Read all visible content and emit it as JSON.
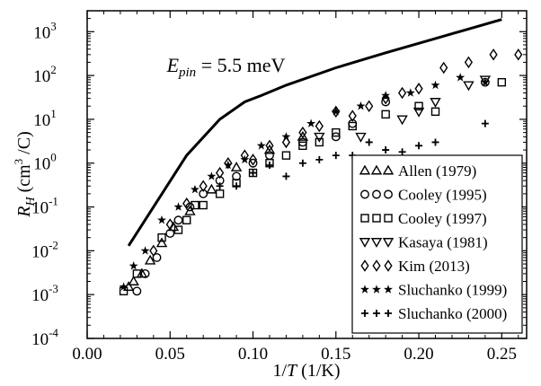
{
  "chart_data": {
    "type": "scatter",
    "xlabel": "1/T (1/K)",
    "ylabel": "R_H (cm^3 /C)",
    "xlim": [
      0.0,
      0.265
    ],
    "ylim": [
      0.0001,
      3000
    ],
    "yscale": "log",
    "grid": false,
    "legend_position": "lower-right",
    "x_ticks": [
      0.0,
      0.05,
      0.1,
      0.15,
      0.2,
      0.25
    ],
    "x_tick_labels": [
      "0.00",
      "0.05",
      "0.10",
      "0.15",
      "0.20",
      "0.25"
    ],
    "y_ticks": [
      0.0001,
      0.001,
      0.01,
      0.1,
      1.0,
      10.0,
      100.0,
      1000.0
    ],
    "y_tick_labels": [
      {
        "base": "10",
        "exp": "-4"
      },
      {
        "base": "10",
        "exp": "-3"
      },
      {
        "base": "10",
        "exp": "-2"
      },
      {
        "base": "10",
        "exp": "-1"
      },
      {
        "base": "10",
        "exp": "0"
      },
      {
        "base": "10",
        "exp": "1"
      },
      {
        "base": "10",
        "exp": "2"
      },
      {
        "base": "10",
        "exp": "3"
      }
    ],
    "annotation": {
      "symbol": "E",
      "subscript": "pin",
      "text": " = 5.5 meV",
      "x": 0.048,
      "y": 120
    },
    "curve": {
      "x": [
        0.025,
        0.04,
        0.06,
        0.08,
        0.095,
        0.105,
        0.12,
        0.15,
        0.18,
        0.21,
        0.25
      ],
      "y": [
        0.013,
        0.1,
        1.5,
        10,
        25,
        35,
        60,
        150,
        330,
        700,
        1900
      ]
    },
    "series": [
      {
        "name": "Allen (1979)",
        "marker": "triangle-up",
        "x": [
          0.025,
          0.028,
          0.033,
          0.038,
          0.045,
          0.052,
          0.062,
          0.075,
          0.09,
          0.11,
          0.13
        ],
        "y": [
          0.0015,
          0.002,
          0.003,
          0.006,
          0.015,
          0.035,
          0.08,
          0.25,
          0.8,
          2.0,
          4.0
        ]
      },
      {
        "name": "Cooley (1995)",
        "marker": "circle",
        "x": [
          0.03,
          0.035,
          0.042,
          0.05,
          0.055,
          0.062,
          0.07,
          0.08,
          0.09,
          0.1,
          0.11,
          0.13,
          0.15,
          0.16,
          0.18,
          0.24
        ],
        "y": [
          0.0012,
          0.003,
          0.007,
          0.025,
          0.05,
          0.1,
          0.2,
          0.4,
          0.5,
          1.0,
          1.5,
          3.0,
          4.0,
          8.0,
          25,
          70
        ]
      },
      {
        "name": "Cooley (1997)",
        "marker": "square",
        "x": [
          0.022,
          0.03,
          0.045,
          0.055,
          0.06,
          0.065,
          0.07,
          0.08,
          0.09,
          0.1,
          0.11,
          0.12,
          0.13,
          0.14,
          0.15,
          0.16,
          0.18,
          0.2,
          0.21,
          0.25
        ],
        "y": [
          0.0012,
          0.003,
          0.02,
          0.03,
          0.05,
          0.11,
          0.11,
          0.2,
          0.35,
          0.6,
          1.0,
          1.5,
          2.5,
          3.0,
          5.0,
          7.0,
          13,
          20,
          15,
          70
        ]
      },
      {
        "name": "Kasaya (1981)",
        "marker": "triangle-down",
        "x": [
          0.14,
          0.165,
          0.19,
          0.2,
          0.21,
          0.23,
          0.24
        ],
        "y": [
          4.0,
          4.0,
          10,
          15,
          25,
          60,
          80
        ]
      },
      {
        "name": "Kim (2013)",
        "marker": "diamond",
        "x": [
          0.04,
          0.05,
          0.06,
          0.07,
          0.08,
          0.085,
          0.095,
          0.1,
          0.11,
          0.12,
          0.13,
          0.14,
          0.15,
          0.16,
          0.17,
          0.18,
          0.19,
          0.2,
          0.215,
          0.23,
          0.245,
          0.26
        ],
        "y": [
          0.01,
          0.04,
          0.12,
          0.3,
          0.6,
          1.0,
          1.5,
          1.2,
          2.5,
          3.0,
          5.0,
          7.0,
          15,
          12,
          20,
          30,
          40,
          50,
          150,
          200,
          300,
          300
        ]
      },
      {
        "name": "Sluchanko (1999)",
        "marker": "star",
        "x": [
          0.022,
          0.028,
          0.035,
          0.045,
          0.055,
          0.065,
          0.075,
          0.085,
          0.095,
          0.105,
          0.12,
          0.135,
          0.15,
          0.165,
          0.18,
          0.195,
          0.21,
          0.225,
          0.24
        ],
        "y": [
          0.0015,
          0.0045,
          0.01,
          0.05,
          0.1,
          0.25,
          0.5,
          0.9,
          1.2,
          2.5,
          4.0,
          8.0,
          15,
          20,
          35,
          40,
          60,
          90,
          70
        ]
      },
      {
        "name": "Sluchanko (2000)",
        "marker": "plus",
        "x": [
          0.08,
          0.09,
          0.1,
          0.11,
          0.12,
          0.13,
          0.14,
          0.15,
          0.16,
          0.17,
          0.18,
          0.19,
          0.2,
          0.21,
          0.24
        ],
        "y": [
          0.3,
          0.3,
          0.6,
          0.9,
          0.5,
          1.0,
          1.2,
          1.5,
          1.5,
          3.0,
          2.0,
          1.8,
          2.5,
          3.0,
          8.0
        ]
      }
    ]
  }
}
